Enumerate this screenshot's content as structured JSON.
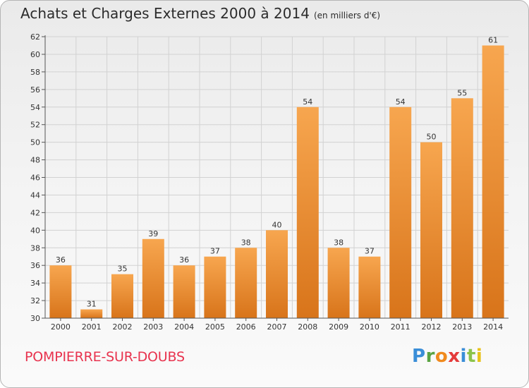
{
  "title": "Achats et Charges Externes 2000 à 2014",
  "unit_note": "(en milliers d'€)",
  "commune": "POMPIERRE-SUR-DOUBS",
  "logo_text": "Proxiti",
  "colors": {
    "bar_light": "#f7a64f",
    "bar_dark": "#d8741a",
    "commune_text": "#e8334e"
  },
  "chart_data": {
    "type": "bar",
    "categories": [
      "2000",
      "2001",
      "2002",
      "2003",
      "2004",
      "2005",
      "2006",
      "2007",
      "2008",
      "2009",
      "2010",
      "2011",
      "2012",
      "2013",
      "2014"
    ],
    "values": [
      36,
      31,
      35,
      39,
      36,
      37,
      38,
      40,
      54,
      38,
      37,
      54,
      50,
      55,
      61
    ],
    "yticks": [
      30,
      32,
      34,
      36,
      38,
      40,
      42,
      44,
      46,
      48,
      50,
      52,
      54,
      56,
      58,
      60,
      62
    ],
    "ylim": [
      30,
      62
    ],
    "grid": true,
    "legend": "none"
  }
}
